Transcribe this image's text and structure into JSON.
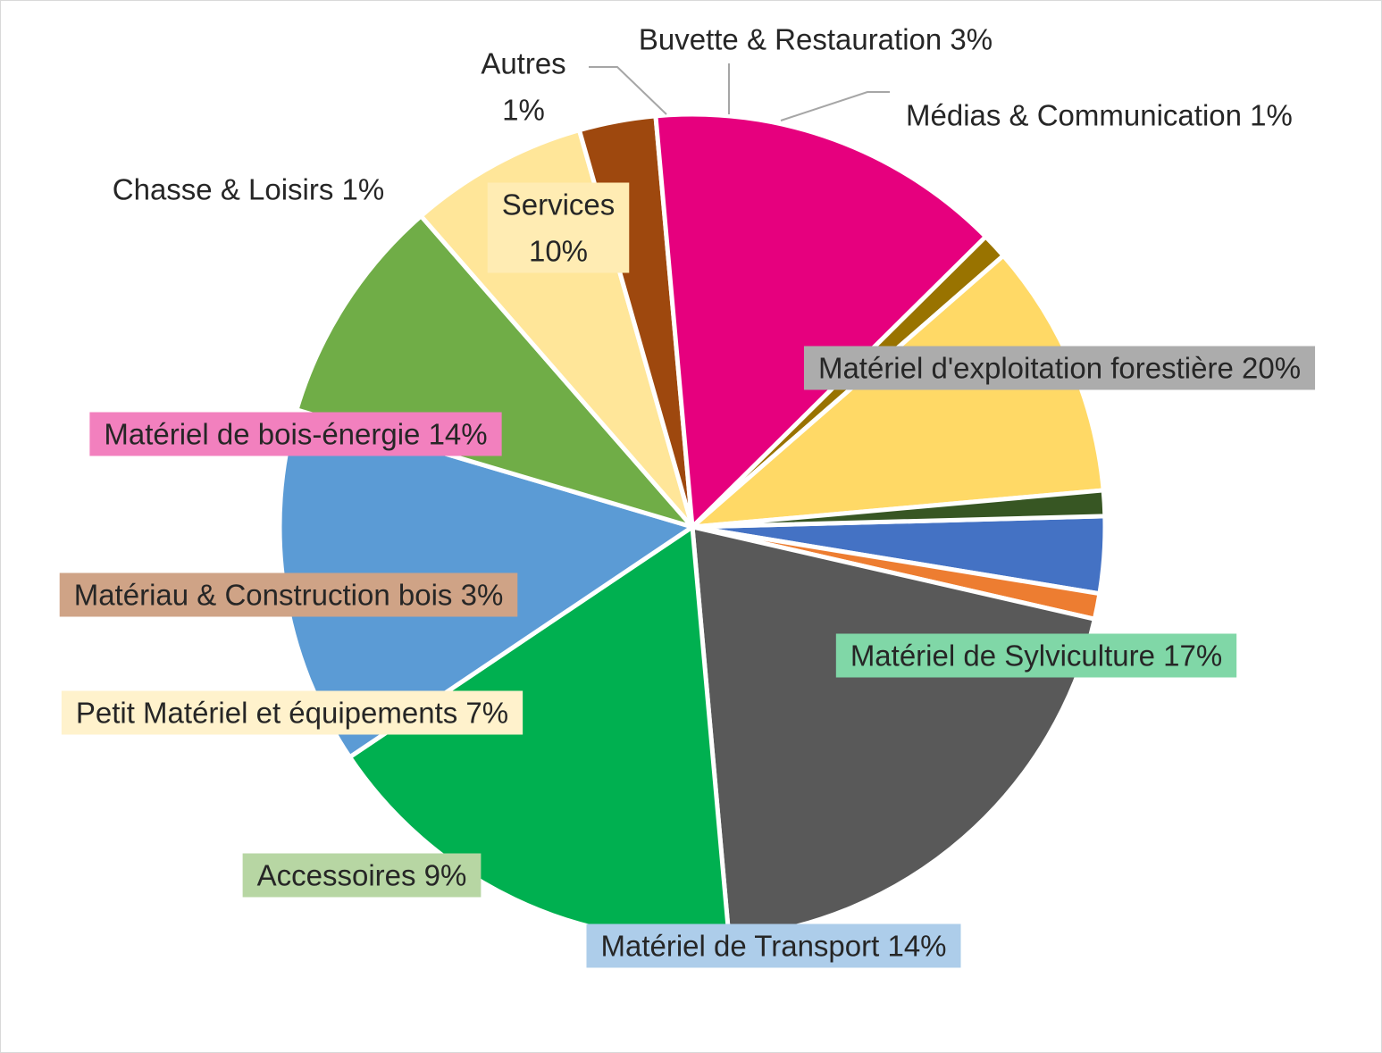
{
  "chart_data": {
    "type": "pie",
    "title": "",
    "slices": [
      {
        "label": "Buvette & Restauration",
        "value": 3,
        "value_text": "3%",
        "color": "#4472C4",
        "label_bg": null,
        "leader": true
      },
      {
        "label": "Médias & Communication",
        "value": 1,
        "value_text": "1%",
        "color": "#ED7D31",
        "label_bg": null,
        "leader": true
      },
      {
        "label": "Matériel d'exploitation forestière",
        "value": 20,
        "value_text": "20%",
        "color": "#595959",
        "label_bg": "#ACACAC",
        "leader": false
      },
      {
        "label": "Matériel de Sylviculture",
        "value": 17,
        "value_text": "17%",
        "color": "#00B050",
        "label_bg": "#80D7A7",
        "leader": false
      },
      {
        "label": "Matériel de Transport",
        "value": 14,
        "value_text": "14%",
        "color": "#5B9BD5",
        "label_bg": "#ADCDEA",
        "leader": false
      },
      {
        "label": "Accessoires",
        "value": 9,
        "value_text": "9%",
        "color": "#70AD47",
        "label_bg": "#B7D6A3",
        "leader": false
      },
      {
        "label": "Petit Matériel et équipements",
        "value": 7,
        "value_text": "7%",
        "color": "#FFE699",
        "label_bg": "#FFF2CC",
        "leader": false
      },
      {
        "label": "Matériau & Construction bois",
        "value": 3,
        "value_text": "3%",
        "color": "#9E480E",
        "label_bg": "#CFA386",
        "leader": false
      },
      {
        "label": "Matériel de bois-énergie",
        "value": 14,
        "value_text": "14%",
        "color": "#E6007E",
        "label_bg": "#F280BE",
        "leader": false
      },
      {
        "label": "Chasse & Loisirs",
        "value": 1,
        "value_text": "1%",
        "color": "#997300",
        "label_bg": null,
        "leader": false
      },
      {
        "label": "Services",
        "value": 10,
        "value_text": "10%",
        "color": "#FFD966",
        "label_bg": "#FFECB3",
        "leader": false
      },
      {
        "label": "Autres",
        "value": 1,
        "value_text": "1%",
        "color": "#375623",
        "label_bg": null,
        "leader": true
      }
    ]
  }
}
